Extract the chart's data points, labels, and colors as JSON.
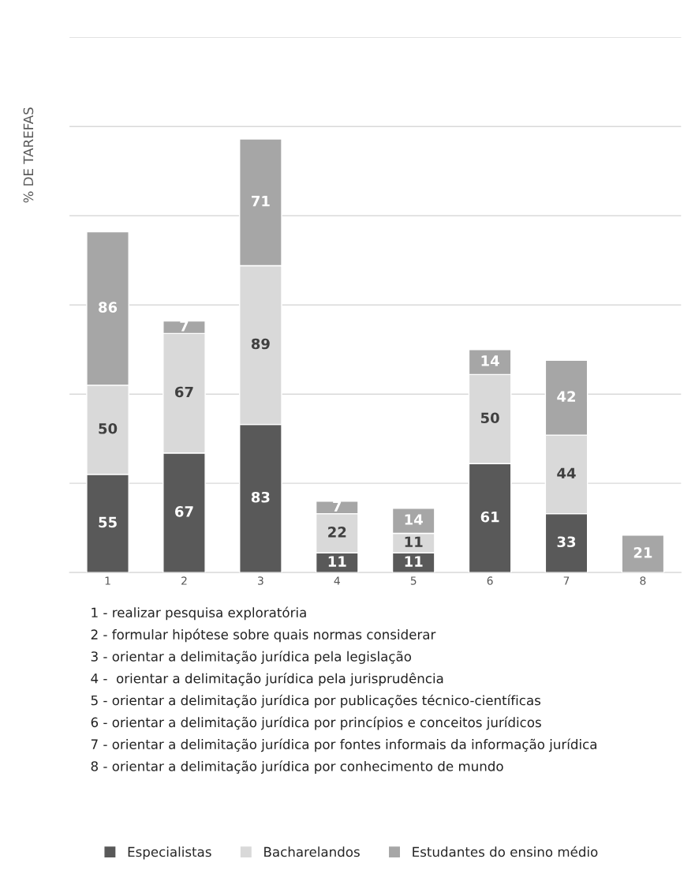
{
  "chart_data": {
    "type": "bar",
    "stacked": true,
    "ylabel": "% DE TAREFAS",
    "categories": [
      "1",
      "2",
      "3",
      "4",
      "5",
      "6",
      "7",
      "8"
    ],
    "series": [
      {
        "name": "Especialistas",
        "color": "#595959",
        "values": [
          55,
          67,
          83,
          11,
          11,
          61,
          33,
          null
        ]
      },
      {
        "name": "Bacharelandos",
        "color": "#d9d9d9",
        "values": [
          50,
          67,
          89,
          22,
          11,
          50,
          44,
          null
        ]
      },
      {
        "name": "Estudantes do ensino médio",
        "color": "#a6a6a6",
        "values": [
          86,
          7,
          71,
          7,
          14,
          14,
          42,
          21
        ]
      }
    ],
    "data_labels": true,
    "ylim": [
      0,
      300
    ],
    "yticks": [
      {
        "value": 0,
        "label": null
      },
      {
        "value": 50,
        "label": null
      },
      {
        "value": 100,
        "label": null
      },
      {
        "value": 150,
        "label": null
      },
      {
        "value": 200,
        "label": null
      },
      {
        "value": 250,
        "label": null
      },
      {
        "value": 300,
        "label": null
      }
    ],
    "grid": "y",
    "tick_labels": "x",
    "legend": "bottom",
    "annotations": [
      "1 - realizar pesquisa exploratória",
      "2 - formular hipótese sobre quais normas considerar",
      "3 - orientar a delimitação jurídica pela legislação",
      "4 -  orientar a delimitação jurídica pela jurisprudência",
      "5 - orientar a delimitação jurídica por publicações técnico-científicas",
      "6 - orientar a delimitação jurídica por princípios e conceitos jurídicos",
      "7 - orientar a delimitação jurídica por fontes informais da informação jurídica",
      "8 - orientar a delimitação jurídica por conhecimento de mundo"
    ]
  }
}
